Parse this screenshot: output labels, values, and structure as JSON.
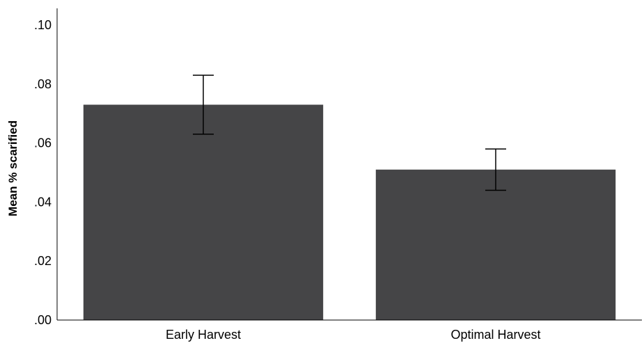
{
  "chart_data": {
    "type": "bar",
    "categories": [
      "Early Harvest",
      "Optimal Harvest"
    ],
    "values": [
      0.073,
      0.051
    ],
    "error_bars": [
      {
        "low": 0.063,
        "high": 0.083
      },
      {
        "low": 0.044,
        "high": 0.058
      }
    ],
    "ylabel": "Mean % scarified",
    "xlabel": "",
    "ylim": [
      0,
      0.1
    ],
    "yticks": [
      ".00",
      ".02",
      ".04",
      ".06",
      ".08",
      ".10"
    ],
    "ytick_values": [
      0,
      0.02,
      0.04,
      0.06,
      0.08,
      0.1
    ],
    "bar_color": "#454547",
    "grid": false
  }
}
